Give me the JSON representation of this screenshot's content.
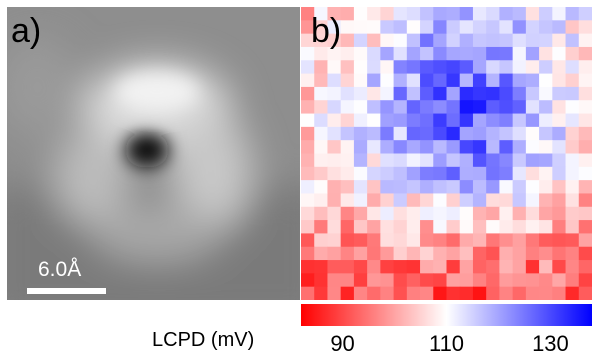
{
  "panel_a": {
    "label": "a)",
    "scalebar_text": "6.0Å"
  },
  "panel_b": {
    "label": "b)"
  },
  "colorbar": {
    "title": "LCPD (mV)",
    "min": 82,
    "max": 138,
    "ticks": [
      "90",
      "110",
      "130"
    ],
    "colors": {
      "low": "#ff0000",
      "mid": "#ffffff",
      "high": "#0000ff"
    }
  }
}
